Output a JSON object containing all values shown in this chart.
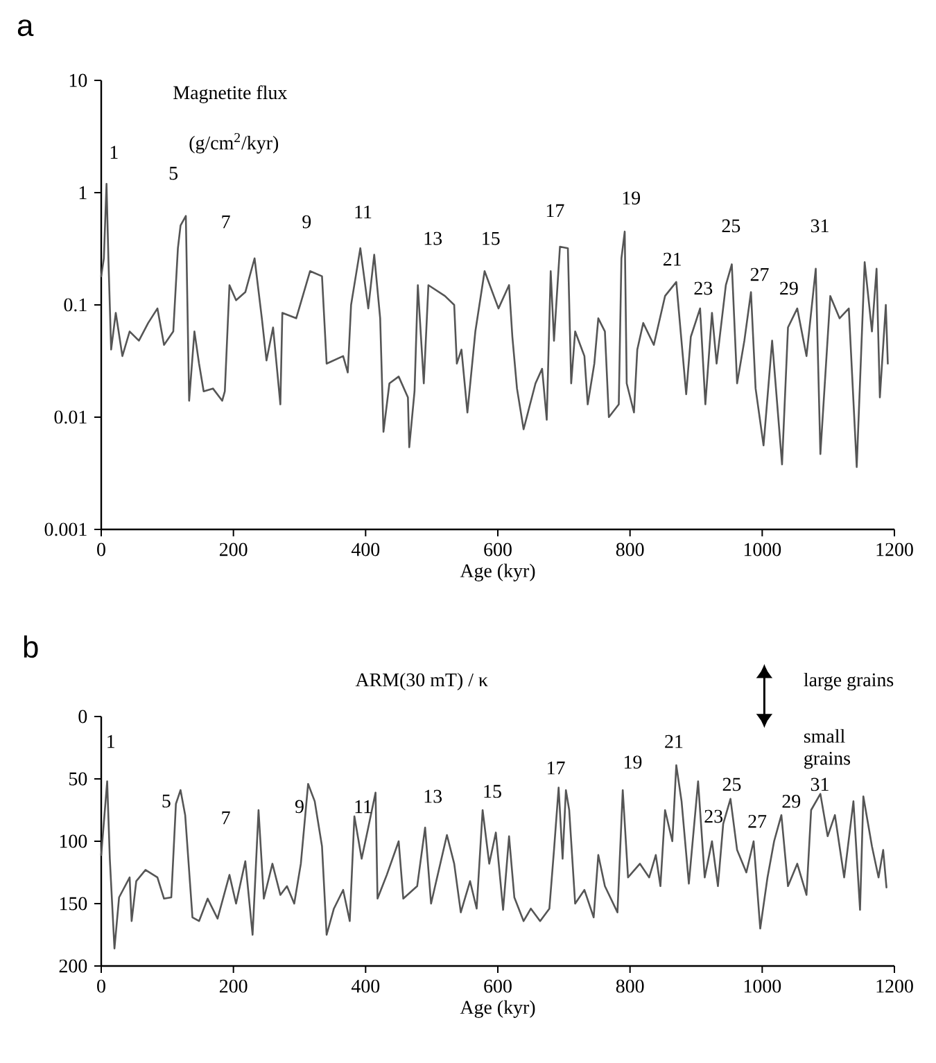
{
  "chart_data": [
    {
      "type": "line",
      "title": "Magnetite flux",
      "subtitle": "(g/cm$^{2}$/kyr)",
      "xlabel": "Age (kyr)",
      "log": true,
      "color": "#555555",
      "xlim": [
        0,
        1200
      ],
      "xticks": [
        0,
        200,
        400,
        600,
        800,
        1000,
        1200
      ],
      "ylim": [
        0.001,
        10
      ],
      "yticks": [
        0.001,
        0.01,
        0.1,
        1,
        10
      ],
      "x": [
        0,
        4,
        8,
        11,
        15,
        22,
        32,
        43,
        57,
        71,
        85,
        95,
        109,
        116,
        120,
        128,
        133,
        141,
        148,
        155,
        169,
        183,
        187,
        194,
        204,
        218,
        232,
        243,
        250,
        260,
        271,
        274,
        295,
        316,
        334,
        341,
        366,
        373,
        378,
        392,
        404,
        413,
        422,
        427,
        436,
        450,
        464,
        466,
        474,
        479,
        488,
        495,
        520,
        534,
        538,
        545,
        554,
        566,
        580,
        601,
        617,
        622,
        629,
        639,
        657,
        667,
        674,
        680,
        685,
        694,
        706,
        711,
        717,
        731,
        736,
        746,
        752,
        762,
        768,
        783,
        787,
        792,
        795,
        806,
        811,
        820,
        836,
        853,
        870,
        885,
        892,
        906,
        914,
        924,
        931,
        945,
        954,
        962,
        973,
        983,
        990,
        1002,
        1015,
        1030,
        1039,
        1053,
        1067,
        1081,
        1088,
        1103,
        1117,
        1131,
        1143,
        1155,
        1166,
        1173,
        1178,
        1187,
        1190
      ],
      "values": [
        0.18,
        0.26,
        1.2,
        0.24,
        0.04,
        0.085,
        0.035,
        0.058,
        0.048,
        0.069,
        0.093,
        0.044,
        0.058,
        0.32,
        0.51,
        0.62,
        0.014,
        0.058,
        0.03,
        0.017,
        0.018,
        0.014,
        0.017,
        0.15,
        0.11,
        0.13,
        0.26,
        0.076,
        0.032,
        0.063,
        0.013,
        0.085,
        0.076,
        0.2,
        0.18,
        0.03,
        0.035,
        0.025,
        0.1,
        0.32,
        0.093,
        0.28,
        0.076,
        0.0074,
        0.02,
        0.023,
        0.015,
        0.0054,
        0.017,
        0.15,
        0.02,
        0.15,
        0.12,
        0.1,
        0.03,
        0.04,
        0.011,
        0.058,
        0.2,
        0.093,
        0.15,
        0.052,
        0.018,
        0.0078,
        0.02,
        0.027,
        0.0095,
        0.2,
        0.048,
        0.33,
        0.32,
        0.02,
        0.058,
        0.035,
        0.013,
        0.03,
        0.076,
        0.058,
        0.01,
        0.013,
        0.26,
        0.45,
        0.02,
        0.011,
        0.04,
        0.069,
        0.044,
        0.12,
        0.16,
        0.016,
        0.052,
        0.093,
        0.013,
        0.085,
        0.03,
        0.15,
        0.23,
        0.02,
        0.048,
        0.13,
        0.018,
        0.0056,
        0.048,
        0.0038,
        0.063,
        0.093,
        0.035,
        0.21,
        0.0047,
        0.12,
        0.076,
        0.093,
        0.0036,
        0.24,
        0.058,
        0.21,
        0.015,
        0.1,
        0.03
      ],
      "annotations": [
        "a",
        "1",
        "5",
        "7",
        "9",
        "11",
        "13",
        "15",
        "17",
        "19",
        "21",
        "23",
        "25",
        "27",
        "29",
        "31"
      ]
    },
    {
      "type": "line",
      "title": "ARM(30 mT) / κ",
      "xlabel": "Age (kyr)",
      "color": "#555555",
      "xlim": [
        0,
        1200
      ],
      "xticks": [
        0,
        200,
        400,
        600,
        800,
        1000,
        1200
      ],
      "ylim": [
        200,
        0
      ],
      "yticks": [
        0,
        50,
        100,
        150,
        200
      ],
      "x": [
        0,
        9,
        13,
        20,
        27,
        43,
        46,
        53,
        67,
        85,
        95,
        106,
        113,
        120,
        127,
        138,
        148,
        161,
        176,
        194,
        204,
        218,
        229,
        238,
        246,
        259,
        271,
        281,
        292,
        302,
        313,
        323,
        334,
        341,
        352,
        366,
        376,
        383,
        394,
        404,
        415,
        418,
        432,
        450,
        457,
        478,
        490,
        499,
        523,
        534,
        544,
        558,
        568,
        577,
        587,
        597,
        608,
        617,
        625,
        639,
        650,
        664,
        678,
        685,
        692,
        698,
        703,
        708,
        717,
        731,
        745,
        752,
        762,
        781,
        789,
        797,
        815,
        829,
        839,
        846,
        853,
        864,
        870,
        878,
        889,
        903,
        913,
        924,
        933,
        941,
        952,
        962,
        976,
        987,
        997,
        1008,
        1018,
        1029,
        1039,
        1053,
        1067,
        1074,
        1088,
        1099,
        1110,
        1124,
        1138,
        1148,
        1153,
        1166,
        1176,
        1183,
        1188
      ],
      "values": [
        111,
        52,
        114,
        186,
        145,
        129,
        164,
        132,
        123,
        129,
        146,
        145,
        70,
        59,
        79,
        161,
        164,
        146,
        162,
        127,
        150,
        116,
        175,
        75,
        146,
        118,
        143,
        136,
        150,
        118,
        54,
        68,
        104,
        175,
        154,
        139,
        164,
        80,
        114,
        89,
        61,
        146,
        127,
        100,
        146,
        136,
        89,
        150,
        95,
        118,
        157,
        132,
        154,
        75,
        118,
        93,
        155,
        96,
        145,
        164,
        154,
        164,
        154,
        107,
        57,
        114,
        59,
        75,
        150,
        139,
        161,
        111,
        136,
        157,
        59,
        129,
        118,
        129,
        111,
        136,
        75,
        100,
        39,
        68,
        134,
        52,
        129,
        100,
        136,
        86,
        66,
        107,
        125,
        100,
        170,
        129,
        100,
        79,
        136,
        118,
        143,
        75,
        62,
        96,
        79,
        129,
        68,
        155,
        64,
        104,
        129,
        107,
        137
      ],
      "annotations": [
        "b",
        "large grains",
        "small grains",
        "1",
        "5",
        "7",
        "9",
        "11",
        "13",
        "15",
        "17",
        "19",
        "21",
        "23",
        "25",
        "27",
        "29",
        "31"
      ]
    }
  ]
}
